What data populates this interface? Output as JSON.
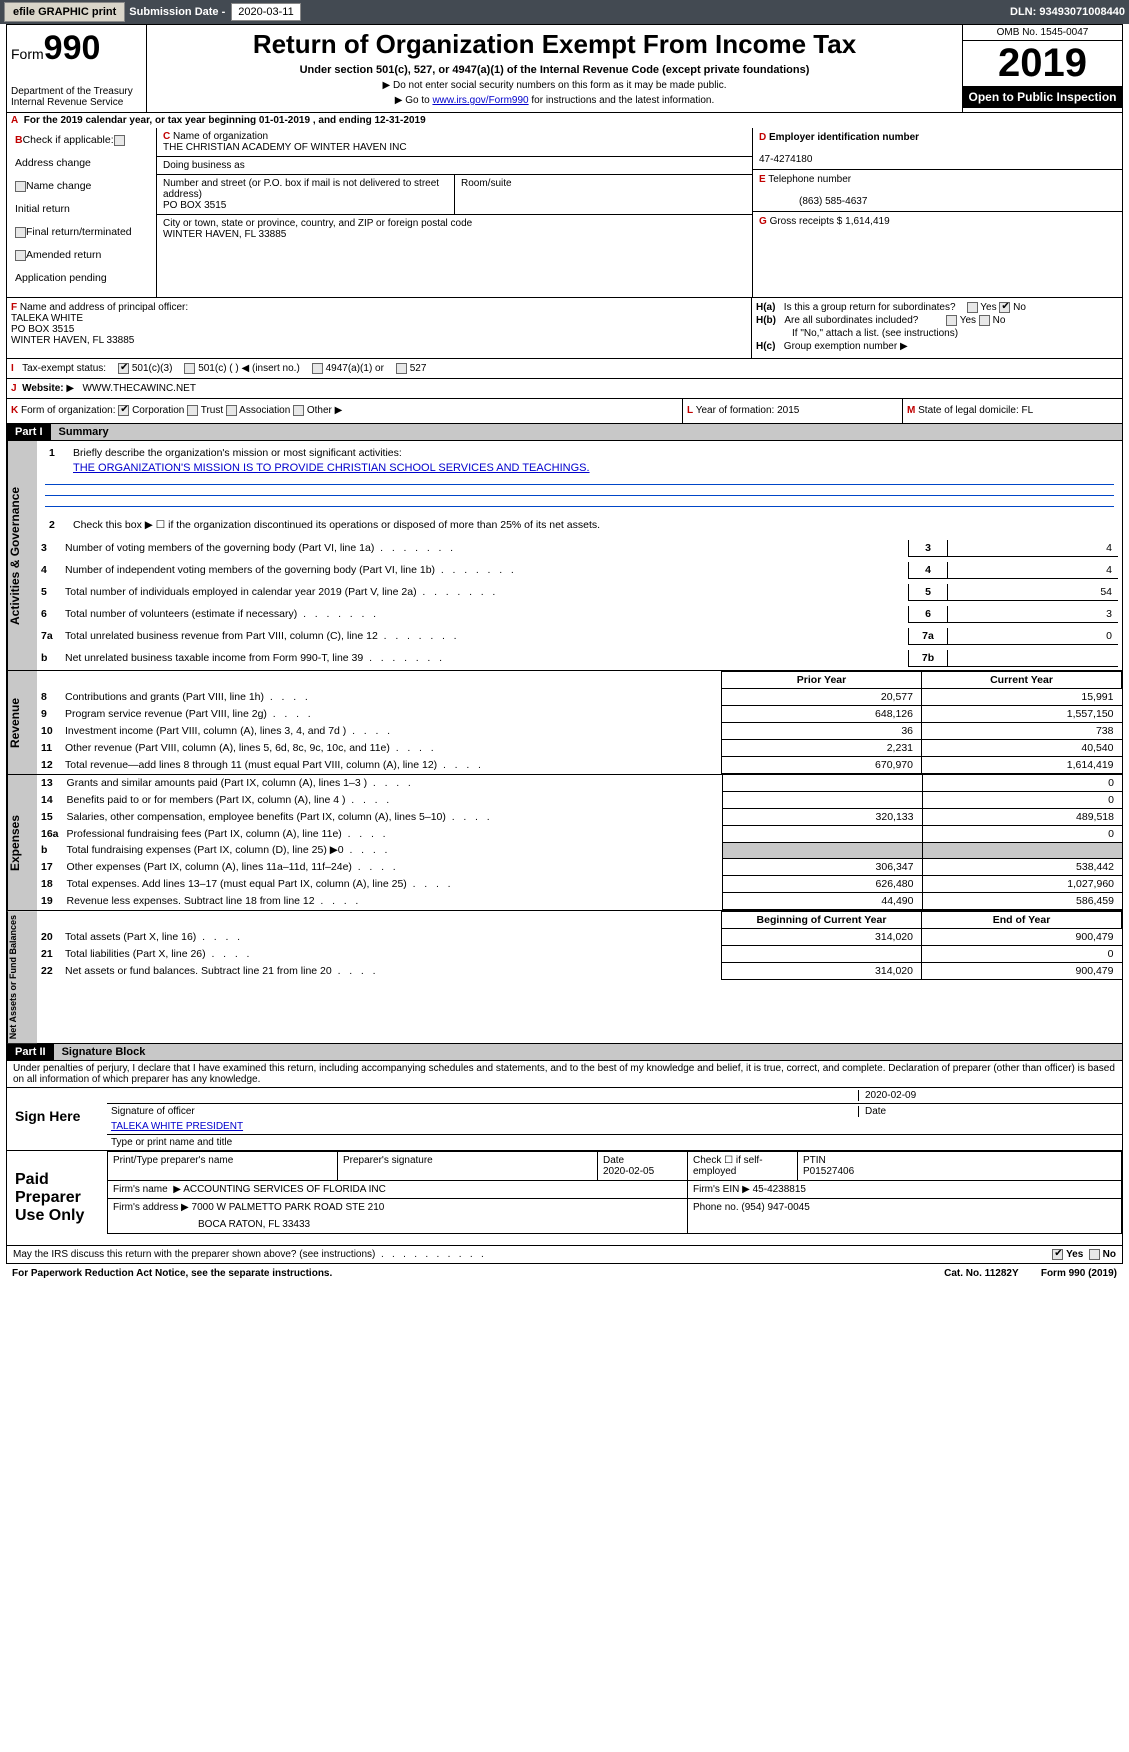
{
  "toolbar": {
    "efile": "efile GRAPHIC print",
    "sub_label": "Submission Date - ",
    "sub_date": "2020-03-11",
    "dln": "DLN: 93493071008440"
  },
  "header": {
    "form_prefix": "Form",
    "form_num": "990",
    "dept1": "Department of the Treasury",
    "dept2": "Internal Revenue Service",
    "title": "Return of Organization Exempt From Income Tax",
    "subtitle": "Under section 501(c), 527, or 4947(a)(1) of the Internal Revenue Code (except private foundations)",
    "note1": "Do not enter social security numbers on this form as it may be made public.",
    "note2_pre": "Go to ",
    "note2_link": "www.irs.gov/Form990",
    "note2_post": " for instructions and the latest information.",
    "omb": "OMB No. 1545-0047",
    "year": "2019",
    "open": "Open to Public Inspection"
  },
  "row_a": "For the 2019 calendar year, or tax year beginning 01-01-2019       , and ending 12-31-2019",
  "col_b": {
    "title": "Check if applicable:",
    "items": [
      "Address change",
      "Name change",
      "Initial return",
      "Final return/terminated",
      "Amended return",
      "Application pending"
    ]
  },
  "org": {
    "c_label": "Name of organization",
    "name": "THE CHRISTIAN ACADEMY OF WINTER HAVEN INC",
    "dba_label": "Doing business as",
    "dba": "",
    "addr_label": "Number and street (or P.O. box if mail is not delivered to street address)",
    "addr": "PO BOX 3515",
    "room_label": "Room/suite",
    "city_label": "City or town, state or province, country, and ZIP or foreign postal code",
    "city": "WINTER HAVEN, FL  33885"
  },
  "right": {
    "d_label": "Employer identification number",
    "ein": "47-4274180",
    "e_label": "Telephone number",
    "phone": "(863) 585-4637",
    "g_label": "Gross receipts $ ",
    "gross": "1,614,419"
  },
  "f": {
    "label": "Name and address of principal officer:",
    "name": "TALEKA WHITE",
    "addr1": "PO BOX 3515",
    "addr2": "WINTER HAVEN, FL  33885"
  },
  "h": {
    "a": "Is this a group return for subordinates?",
    "b": "Are all subordinates included?",
    "b2": "If \"No,\" attach a list. (see instructions)",
    "c": "Group exemption number"
  },
  "i": {
    "label": "Tax-exempt status:",
    "opts": [
      "501(c)(3)",
      "501(c) (  )",
      "(insert no.)",
      "4947(a)(1) or",
      "527"
    ]
  },
  "j": {
    "label": "Website:",
    "val": "WWW.THECAWINC.NET"
  },
  "k": {
    "label": "Form of organization:",
    "opts": [
      "Corporation",
      "Trust",
      "Association",
      "Other"
    ]
  },
  "l": {
    "label": "Year of formation:",
    "val": "2015"
  },
  "m": {
    "label": "State of legal domicile:",
    "val": "FL"
  },
  "part1": {
    "tag": "Part I",
    "title": "Summary",
    "q1": "Briefly describe the organization's mission or most significant activities:",
    "mission": "THE ORGANIZATION'S MISSION IS TO PROVIDE CHRISTIAN SCHOOL SERVICES AND TEACHINGS.",
    "q2": "Check this box ▶ ☐ if the organization discontinued its operations or disposed of more than 25% of its net assets."
  },
  "gov_lines": [
    {
      "n": "3",
      "t": "Number of voting members of the governing body (Part VI, line 1a)",
      "box": "3",
      "v": "4"
    },
    {
      "n": "4",
      "t": "Number of independent voting members of the governing body (Part VI, line 1b)",
      "box": "4",
      "v": "4"
    },
    {
      "n": "5",
      "t": "Total number of individuals employed in calendar year 2019 (Part V, line 2a)",
      "box": "5",
      "v": "54"
    },
    {
      "n": "6",
      "t": "Total number of volunteers (estimate if necessary)",
      "box": "6",
      "v": "3"
    },
    {
      "n": "7a",
      "t": "Total unrelated business revenue from Part VIII, column (C), line 12",
      "box": "7a",
      "v": "0"
    },
    {
      "n": "b",
      "t": "Net unrelated business taxable income from Form 990-T, line 39",
      "box": "7b",
      "v": ""
    }
  ],
  "rev_hdr": {
    "py": "Prior Year",
    "cy": "Current Year"
  },
  "rev_lines": [
    {
      "n": "8",
      "t": "Contributions and grants (Part VIII, line 1h)",
      "py": "20,577",
      "cy": "15,991"
    },
    {
      "n": "9",
      "t": "Program service revenue (Part VIII, line 2g)",
      "py": "648,126",
      "cy": "1,557,150"
    },
    {
      "n": "10",
      "t": "Investment income (Part VIII, column (A), lines 3, 4, and 7d )",
      "py": "36",
      "cy": "738"
    },
    {
      "n": "11",
      "t": "Other revenue (Part VIII, column (A), lines 5, 6d, 8c, 9c, 10c, and 11e)",
      "py": "2,231",
      "cy": "40,540"
    },
    {
      "n": "12",
      "t": "Total revenue—add lines 8 through 11 (must equal Part VIII, column (A), line 12)",
      "py": "670,970",
      "cy": "1,614,419"
    }
  ],
  "exp_lines": [
    {
      "n": "13",
      "t": "Grants and similar amounts paid (Part IX, column (A), lines 1–3 )",
      "py": "",
      "cy": "0"
    },
    {
      "n": "14",
      "t": "Benefits paid to or for members (Part IX, column (A), line 4 )",
      "py": "",
      "cy": "0"
    },
    {
      "n": "15",
      "t": "Salaries, other compensation, employee benefits (Part IX, column (A), lines 5–10)",
      "py": "320,133",
      "cy": "489,518"
    },
    {
      "n": "16a",
      "t": "Professional fundraising fees (Part IX, column (A), line 11e)",
      "py": "",
      "cy": "0"
    },
    {
      "n": "b",
      "t": "Total fundraising expenses (Part IX, column (D), line 25) ▶0",
      "py": "GRAY",
      "cy": "GRAY"
    },
    {
      "n": "17",
      "t": "Other expenses (Part IX, column (A), lines 11a–11d, 11f–24e)",
      "py": "306,347",
      "cy": "538,442"
    },
    {
      "n": "18",
      "t": "Total expenses. Add lines 13–17 (must equal Part IX, column (A), line 25)",
      "py": "626,480",
      "cy": "1,027,960"
    },
    {
      "n": "19",
      "t": "Revenue less expenses. Subtract line 18 from line 12",
      "py": "44,490",
      "cy": "586,459"
    }
  ],
  "na_hdr": {
    "py": "Beginning of Current Year",
    "cy": "End of Year"
  },
  "na_lines": [
    {
      "n": "20",
      "t": "Total assets (Part X, line 16)",
      "py": "314,020",
      "cy": "900,479"
    },
    {
      "n": "21",
      "t": "Total liabilities (Part X, line 26)",
      "py": "",
      "cy": "0"
    },
    {
      "n": "22",
      "t": "Net assets or fund balances. Subtract line 21 from line 20",
      "py": "314,020",
      "cy": "900,479"
    }
  ],
  "part2": {
    "tag": "Part II",
    "title": "Signature Block",
    "perjury": "Under penalties of perjury, I declare that I have examined this return, including accompanying schedules and statements, and to the best of my knowledge and belief, it is true, correct, and complete. Declaration of preparer (other than officer) is based on all information of which preparer has any knowledge."
  },
  "sign": {
    "label": "Sign Here",
    "sig_of": "Signature of officer",
    "date": "2020-02-09",
    "date_lbl": "Date",
    "name": "TALEKA WHITE  PRESIDENT",
    "name_lbl": "Type or print name and title"
  },
  "prep": {
    "label": "Paid Preparer Use Only",
    "h1": "Print/Type preparer's name",
    "h2": "Preparer's signature",
    "h3": "Date",
    "date": "2020-02-05",
    "h4": "Check ☐ if self-employed",
    "h5": "PTIN",
    "ptin": "P01527406",
    "firm_lbl": "Firm's name",
    "firm": "ACCOUNTING SERVICES OF FLORIDA INC",
    "ein_lbl": "Firm's EIN",
    "ein": "45-4238815",
    "addr_lbl": "Firm's address",
    "addr1": "7000 W PALMETTO PARK ROAD STE 210",
    "addr2": "BOCA RATON, FL  33433",
    "phone_lbl": "Phone no.",
    "phone": "(954) 947-0045"
  },
  "footer": {
    "discuss": "May the IRS discuss this return with the preparer shown above? (see instructions)",
    "yes": "Yes",
    "no": "No",
    "pra": "For Paperwork Reduction Act Notice, see the separate instructions.",
    "cat": "Cat. No. 11282Y",
    "form": "Form 990 (2019)"
  },
  "vtabs": {
    "gov": "Activities & Governance",
    "rev": "Revenue",
    "exp": "Expenses",
    "na": "Net Assets or Fund Balances"
  },
  "colors": {
    "toolbar_bg": "#434a52",
    "gray_bg": "#c8c8c8",
    "blue_rule": "#0046c8",
    "red": "#c00000"
  }
}
